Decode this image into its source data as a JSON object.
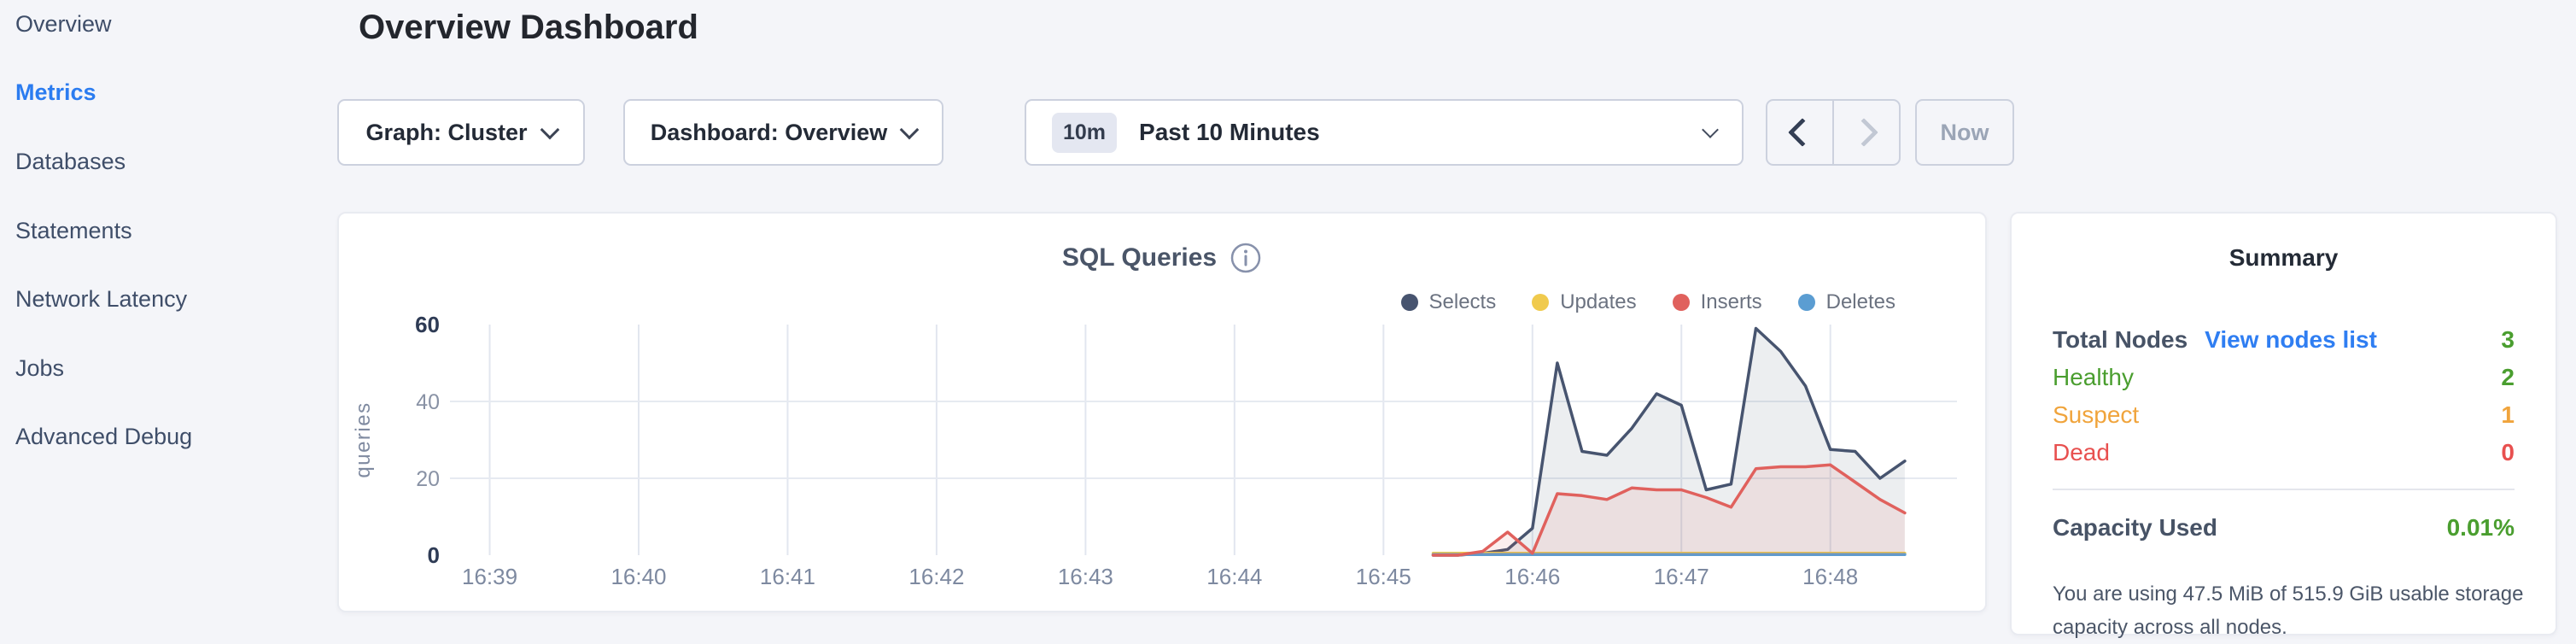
{
  "sidebar": {
    "items": [
      {
        "label": "Overview",
        "active": false
      },
      {
        "label": "Metrics",
        "active": true
      },
      {
        "label": "Databases",
        "active": false
      },
      {
        "label": "Statements",
        "active": false
      },
      {
        "label": "Network Latency",
        "active": false
      },
      {
        "label": "Jobs",
        "active": false
      },
      {
        "label": "Advanced Debug",
        "active": false
      }
    ],
    "active_color": "#2b7cf0"
  },
  "header": {
    "title": "Overview Dashboard"
  },
  "toolbar": {
    "graph_selector": "Graph: Cluster",
    "dashboard_selector": "Dashboard: Overview",
    "time_badge": "10m",
    "time_label": "Past 10 Minutes",
    "now_label": "Now"
  },
  "chart_card": {
    "title": "SQL Queries"
  },
  "chart_data": {
    "type": "area",
    "title": "SQL Queries",
    "ylabel": "queries",
    "x_axis": {
      "tick_labels": [
        "16:39",
        "16:40",
        "16:41",
        "16:42",
        "16:43",
        "16:44",
        "16:45",
        "16:46",
        "16:47",
        "16:48"
      ],
      "tick_seconds": [
        0,
        60,
        120,
        180,
        240,
        300,
        360,
        420,
        480,
        540
      ]
    },
    "y_axis": {
      "ticks": [
        0,
        20,
        40,
        60
      ],
      "strong_ticks": [
        0,
        60
      ],
      "gridline_values": [
        20,
        40
      ],
      "domain": [
        0,
        60
      ]
    },
    "series_start_time": "16:45:20",
    "series_interval_seconds": 10,
    "series": [
      {
        "name": "Selects",
        "color": "#47546f",
        "fill_opacity": 0.1,
        "start_second": 380,
        "step_seconds": 10,
        "values": [
          0,
          0,
          0.5,
          1.5,
          7,
          50,
          27,
          26,
          33,
          42,
          39,
          17,
          18.5,
          59,
          53,
          44,
          27.5,
          27,
          20,
          24.5
        ]
      },
      {
        "name": "Updates",
        "color": "#f0ca4d",
        "fill_opacity": 0.08,
        "start_second": 380,
        "step_seconds": 10,
        "values": [
          0.5,
          0.5,
          0.5,
          0.5,
          0.5,
          0.5,
          0.5,
          0.5,
          0.5,
          0.5,
          0.5,
          0.5,
          0.5,
          0.5,
          0.5,
          0.5,
          0.5,
          0.5,
          0.5,
          0.5
        ]
      },
      {
        "name": "Inserts",
        "color": "#e0615d",
        "fill_opacity": 0.1,
        "start_second": 380,
        "step_seconds": 10,
        "values": [
          0,
          0,
          1,
          6,
          0.5,
          16,
          15.5,
          14.5,
          17.5,
          17,
          17,
          15,
          12.5,
          22.5,
          23,
          23,
          23.5,
          19,
          14.5,
          11
        ]
      },
      {
        "name": "Deletes",
        "color": "#5b9dd2",
        "fill_opacity": 0.08,
        "start_second": 380,
        "step_seconds": 10,
        "values": [
          0.15,
          0.15,
          0.15,
          0.15,
          0.15,
          0.15,
          0.15,
          0.15,
          0.15,
          0.15,
          0.15,
          0.15,
          0.15,
          0.15,
          0.15,
          0.15,
          0.15,
          0.15,
          0.15,
          0.15
        ]
      }
    ],
    "draw_order": [
      0,
      1,
      3,
      2
    ],
    "layout": {
      "plot_x": [
        130,
        1895
      ],
      "plot_y": [
        400,
        130
      ],
      "x_domain_seconds": [
        -16,
        591
      ],
      "grid": true,
      "legend_position": "top-right"
    }
  },
  "summary": {
    "title": "Summary",
    "total_nodes": {
      "label": "Total Nodes",
      "link": "View nodes list",
      "value": "3",
      "value_color": "#4a9e2f"
    },
    "node_rows": [
      {
        "label": "Healthy",
        "value": "2",
        "color": "#4a9e2f"
      },
      {
        "label": "Suspect",
        "value": "1",
        "color": "#f0a43c"
      },
      {
        "label": "Dead",
        "value": "0",
        "color": "#e8504f"
      }
    ],
    "capacity": {
      "label": "Capacity Used",
      "value": "0.01%",
      "value_color": "#4a9e2f",
      "note": "You are using 47.5 MiB of 515.9 GiB usable storage capacity across all nodes."
    }
  }
}
